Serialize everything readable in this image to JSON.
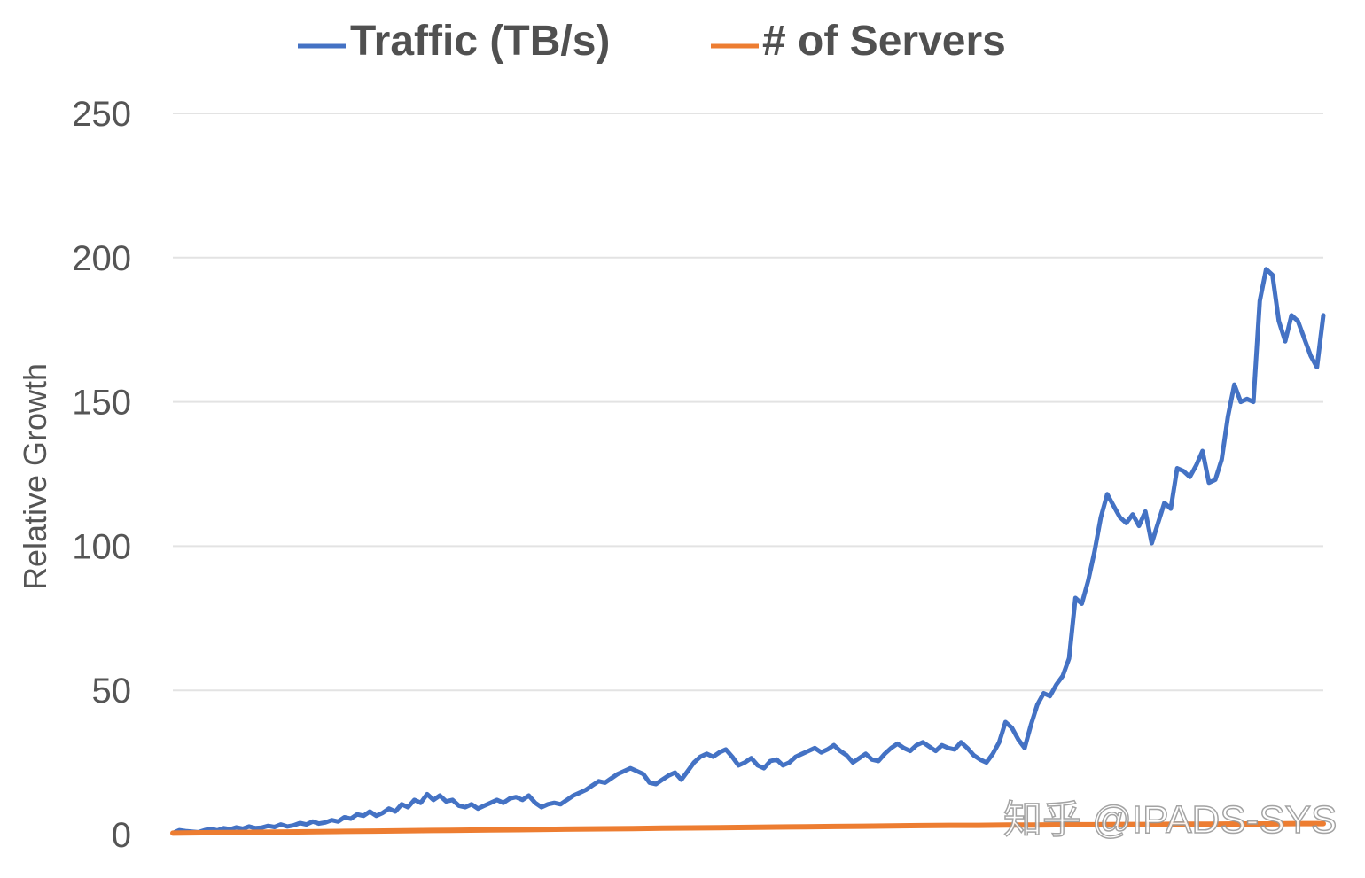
{
  "chart_data": {
    "type": "line",
    "title": "",
    "xlabel": "",
    "ylabel": "Relative Growth",
    "ylim": [
      0,
      250
    ],
    "yticks": [
      0,
      50,
      100,
      150,
      200,
      250
    ],
    "grid": true,
    "legend_position": "top-center",
    "series": [
      {
        "name": "Traffic (TB/s)",
        "color": "#4472C4",
        "values": [
          0.5,
          1.5,
          1.2,
          1.0,
          0.8,
          1.5,
          2.0,
          1.4,
          2.2,
          1.8,
          2.5,
          2.0,
          2.8,
          2.2,
          2.4,
          3.0,
          2.6,
          3.5,
          2.8,
          3.2,
          4.0,
          3.5,
          4.5,
          3.8,
          4.2,
          5.0,
          4.5,
          6.0,
          5.5,
          7.0,
          6.5,
          8.0,
          6.5,
          7.5,
          9.0,
          8.0,
          10.5,
          9.5,
          12.0,
          11.0,
          14.0,
          12.0,
          13.5,
          11.5,
          12.0,
          10.0,
          9.5,
          10.5,
          9.0,
          10.0,
          11.0,
          12.0,
          11.0,
          12.5,
          13.0,
          12.0,
          13.5,
          11.0,
          9.5,
          10.5,
          11.0,
          10.5,
          12.0,
          13.5,
          14.5,
          15.5,
          17.0,
          18.5,
          18.0,
          19.5,
          21.0,
          22.0,
          23.0,
          22.0,
          21.0,
          18.0,
          17.5,
          19.0,
          20.5,
          21.5,
          19.0,
          22.0,
          25.0,
          27.0,
          28.0,
          27.0,
          28.5,
          29.5,
          27.0,
          24.0,
          25.0,
          26.5,
          24.0,
          23.0,
          25.5,
          26.0,
          24.0,
          25.0,
          27.0,
          28.0,
          29.0,
          30.0,
          28.5,
          29.5,
          31.0,
          29.0,
          27.5,
          25.0,
          26.5,
          28.0,
          26.0,
          25.5,
          28.0,
          30.0,
          31.5,
          30.0,
          29.0,
          31.0,
          32.0,
          30.5,
          29.0,
          31.0,
          30.0,
          29.5,
          32.0,
          30.0,
          27.5,
          26.0,
          25.0,
          28.0,
          32.0,
          39.0,
          37.0,
          33.0,
          30.0,
          38.0,
          45.0,
          49.0,
          48.0,
          52.0,
          55.0,
          61.0,
          82.0,
          80.0,
          88.0,
          98.0,
          110.0,
          118.0,
          114.0,
          110.0,
          108.0,
          111.0,
          107.0,
          112.0,
          101.0,
          108.0,
          115.0,
          113.0,
          127.0,
          126.0,
          124.0,
          128.0,
          133.0,
          122.0,
          123.0,
          130.0,
          145.0,
          156.0,
          150.0,
          151.0,
          150.0,
          185.0,
          196.0,
          194.0,
          178.0,
          171.0,
          180.0,
          178.0,
          172.0,
          166.0,
          162.0,
          180.0
        ]
      },
      {
        "name": "# of Servers",
        "color": "#ED7D31",
        "values": [
          0.5,
          0.6,
          0.7,
          0.8,
          0.9,
          1.0,
          1.1,
          1.2,
          1.3,
          1.4,
          1.5,
          1.6,
          1.7,
          1.8,
          1.9,
          2.0,
          2.1,
          2.2,
          2.3,
          2.4,
          2.5,
          2.6,
          2.7,
          2.8,
          2.9,
          3.0,
          3.1,
          3.2,
          3.2,
          3.3,
          3.3,
          3.4,
          3.4,
          3.5,
          3.5,
          3.6,
          3.6,
          3.7,
          3.7,
          3.8,
          3.8
        ]
      }
    ]
  },
  "watermark": {
    "text": "知乎 @IPADS-SYS"
  }
}
